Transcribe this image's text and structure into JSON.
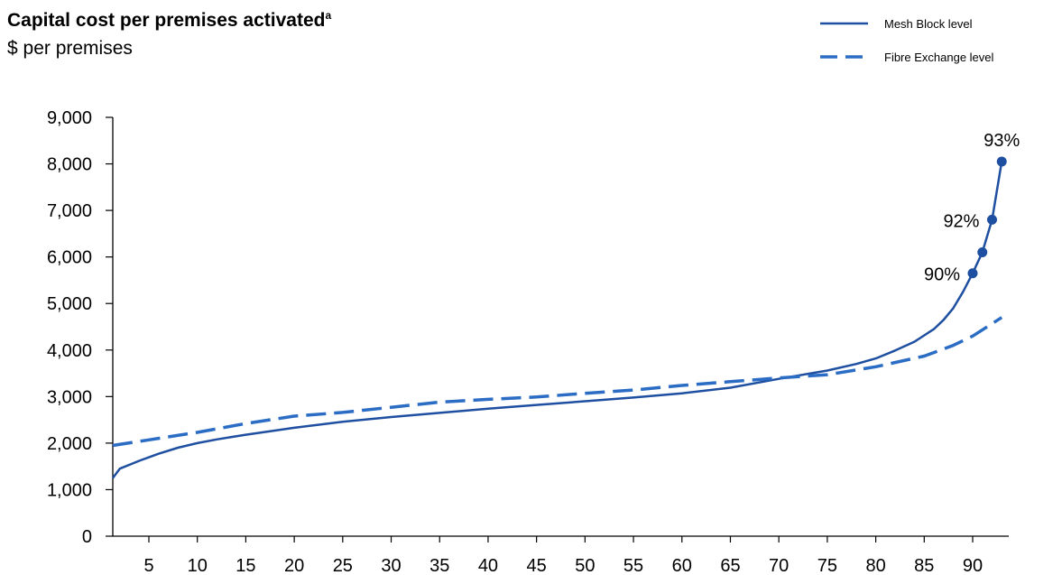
{
  "chart_data": {
    "type": "line",
    "title": "Capital cost per premises activated",
    "title_superscript": "a",
    "subtitle": "$ per premises",
    "xlabel": "",
    "ylabel": "",
    "xlim": [
      1,
      93
    ],
    "ylim": [
      0,
      9000
    ],
    "x_ticks": [
      5,
      10,
      15,
      20,
      25,
      30,
      35,
      40,
      45,
      50,
      55,
      60,
      65,
      70,
      75,
      80,
      85,
      90
    ],
    "y_ticks": [
      0,
      1000,
      2000,
      3000,
      4000,
      5000,
      6000,
      7000,
      8000,
      9000
    ],
    "y_tick_labels": [
      "0",
      "1,000",
      "2,000",
      "3,000",
      "4,000",
      "5,000",
      "6,000",
      "7,000",
      "8,000",
      "9,000"
    ],
    "grid": false,
    "legend_position": "top-right",
    "series": [
      {
        "name": "Mesh Block level",
        "style": "solid",
        "color": "#1f4fa0",
        "x": [
          0,
          2,
          4,
          6,
          8,
          10,
          12,
          15,
          18,
          20,
          25,
          30,
          35,
          40,
          45,
          50,
          55,
          60,
          65,
          70,
          75,
          78,
          80,
          82,
          84,
          86,
          87,
          88,
          89,
          90,
          91,
          92,
          93
        ],
        "y": [
          1250,
          1450,
          1620,
          1770,
          1900,
          2000,
          2080,
          2180,
          2270,
          2330,
          2460,
          2560,
          2650,
          2740,
          2820,
          2900,
          2980,
          3070,
          3190,
          3380,
          3560,
          3700,
          3820,
          3990,
          4180,
          4450,
          4650,
          4900,
          5250,
          5650,
          6100,
          6800,
          8050
        ]
      },
      {
        "name": "Fibre Exchange level",
        "style": "dashed",
        "color": "#2b6cc4",
        "x": [
          0,
          5,
          10,
          15,
          20,
          25,
          30,
          35,
          40,
          45,
          50,
          55,
          60,
          65,
          70,
          75,
          80,
          85,
          88,
          90,
          93
        ],
        "y": [
          1950,
          2070,
          2230,
          2420,
          2580,
          2660,
          2770,
          2880,
          2940,
          2990,
          3070,
          3140,
          3240,
          3320,
          3400,
          3470,
          3640,
          3870,
          4100,
          4300,
          4700
        ]
      }
    ],
    "highlighted_points": [
      {
        "x": 90,
        "y": 5650,
        "label": "90%"
      },
      {
        "x": 91,
        "y": 6100,
        "label": ""
      },
      {
        "x": 92,
        "y": 6800,
        "label": "92%"
      },
      {
        "x": 93,
        "y": 8050,
        "label": "93%"
      }
    ]
  }
}
